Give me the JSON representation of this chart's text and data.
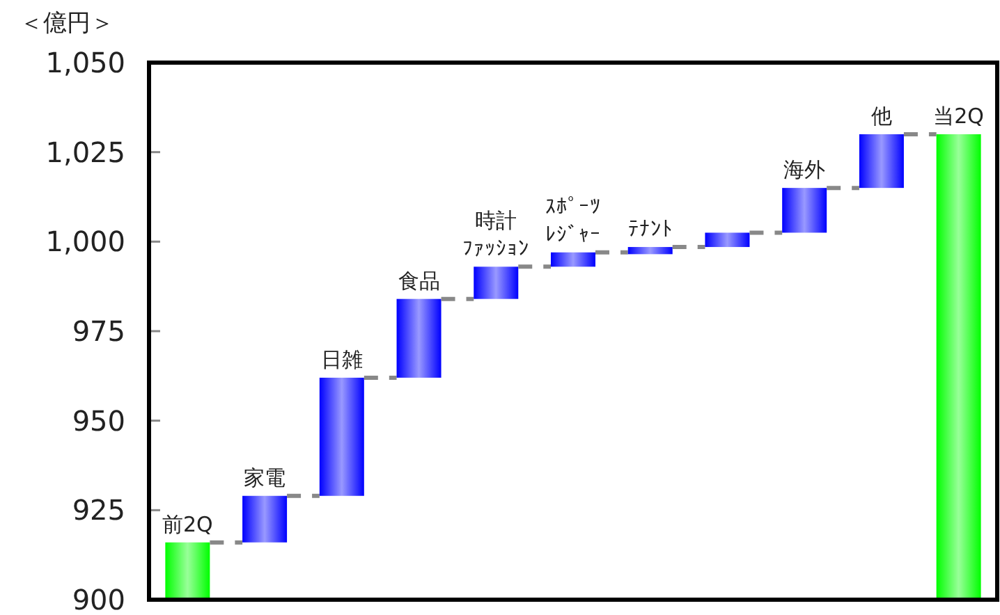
{
  "chart_data": {
    "type": "bar",
    "ylabel": "＜億円＞",
    "categories": [
      "前2Q",
      "家電",
      "日雑",
      "食品",
      "時計ﾌｧｯｼｮﾝ",
      "ｽﾎﾟｰﾂﾚｼﾞｬｰ",
      "ﾃﾅﾝﾄ",
      null,
      "海外",
      "他",
      "当2Q"
    ],
    "base": [
      900,
      916,
      929,
      962,
      984,
      993,
      996.5,
      998.5,
      1002.5,
      1015,
      900
    ],
    "values": [
      16,
      13,
      33,
      22,
      9,
      4,
      2,
      4,
      12.5,
      15,
      130
    ],
    "colors": [
      "#00ff00",
      "#0000ff",
      "#0000ff",
      "#0000ff",
      "#0000ff",
      "#0000ff",
      "#0000ff",
      "#0000ff",
      "#0000ff",
      "#0000ff",
      "#00ff00"
    ],
    "ylim": [
      900,
      1050
    ],
    "yticks": [
      900,
      925,
      950,
      975,
      {
        "value": 1000,
        "label": "1,000"
      },
      {
        "value": 1025,
        "label": "1,025"
      },
      {
        "value": 1050,
        "label": "1,050"
      }
    ]
  }
}
